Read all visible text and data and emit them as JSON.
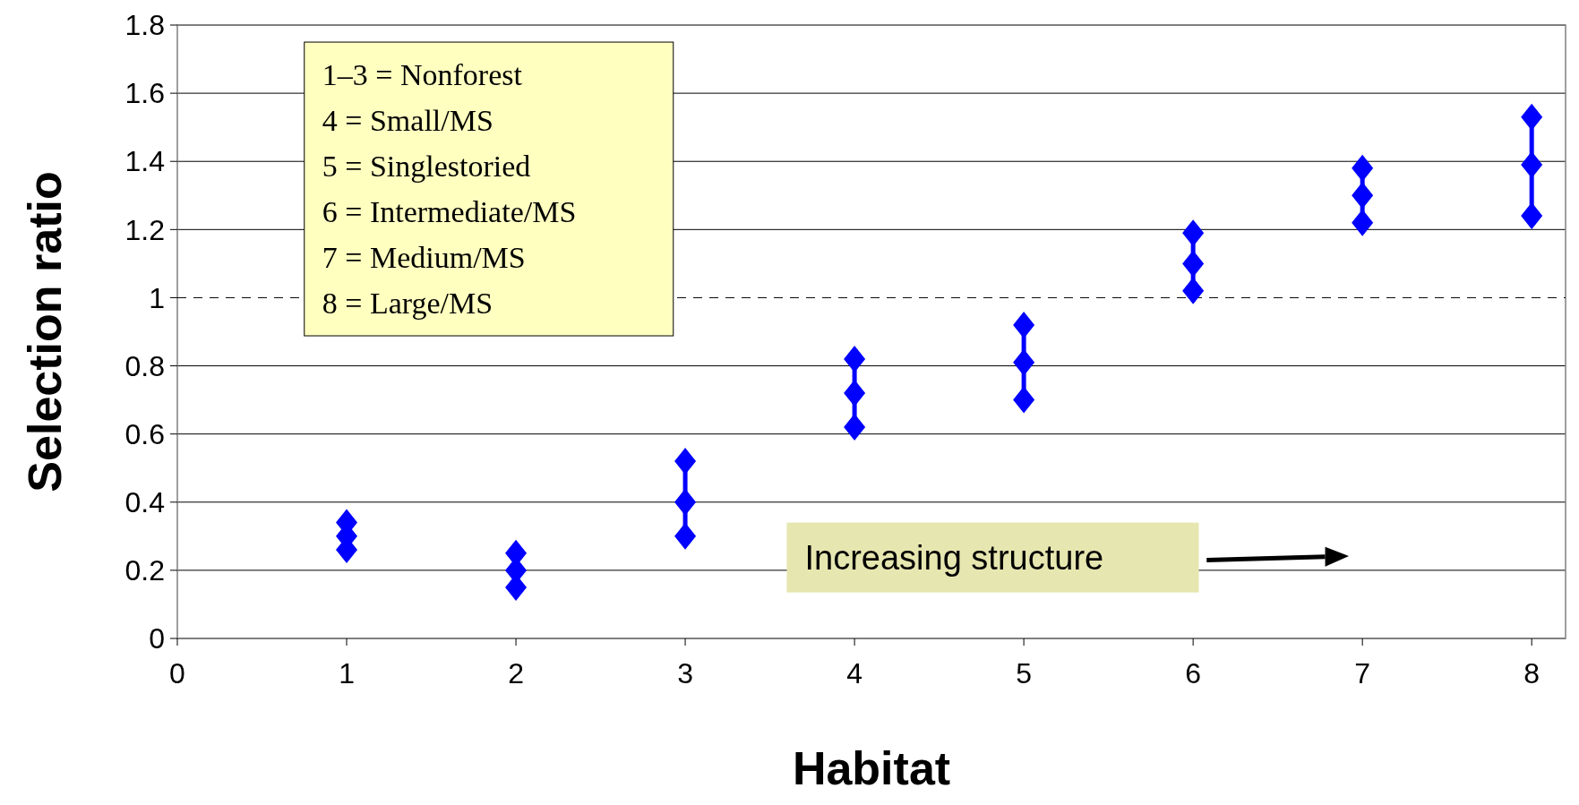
{
  "chart_data": {
    "type": "scatter",
    "xlabel": "Habitat",
    "ylabel": "Selection ratio",
    "x": [
      1,
      2,
      3,
      4,
      5,
      6,
      7,
      8
    ],
    "series": [
      {
        "type": "line",
        "marker": "none",
        "color": "#0000ff",
        "x": [
          3,
          3
        ],
        "values": [
          0.3,
          0.52
        ]
      },
      {
        "type": "line",
        "marker": "none",
        "color": "#0000ff",
        "x": [
          4,
          4
        ],
        "values": [
          0.62,
          0.82
        ]
      },
      {
        "type": "line",
        "marker": "none",
        "color": "#0000ff",
        "x": [
          5,
          5
        ],
        "values": [
          0.7,
          0.92
        ]
      },
      {
        "type": "line",
        "marker": "none",
        "color": "#0000ff",
        "x": [
          6,
          6
        ],
        "values": [
          1.02,
          1.19
        ]
      },
      {
        "type": "line",
        "marker": "none",
        "color": "#0000ff",
        "x": [
          7,
          7
        ],
        "values": [
          1.25,
          1.38
        ]
      },
      {
        "type": "line",
        "marker": "none",
        "color": "#0000ff",
        "x": [
          8,
          8
        ],
        "values": [
          1.24,
          1.53
        ]
      },
      {
        "color": "#0000ff",
        "values": [
          0.34,
          0.25,
          0.52,
          0.82,
          0.92,
          1.19,
          1.38,
          1.53
        ]
      },
      {
        "color": "#0000ff",
        "values": [
          0.3,
          0.2,
          0.4,
          0.72,
          0.81,
          1.1,
          1.3,
          1.39
        ]
      },
      {
        "color": "#0000ff",
        "values": [
          0.26,
          0.15,
          0.3,
          0.62,
          0.7,
          1.02,
          1.22,
          1.24
        ]
      }
    ],
    "xlim": [
      0,
      8.2
    ],
    "xticks": [
      0,
      1,
      2,
      3,
      4,
      5,
      6,
      7,
      8
    ],
    "ylim": [
      0,
      1.8
    ],
    "yticks": [
      0,
      0.2,
      0.4,
      0.6,
      0.8,
      1,
      1.2,
      1.4,
      1.6,
      1.8
    ],
    "grid": "y",
    "marker": "diamond",
    "ref_lines": [
      {
        "axis": "y",
        "value": 1,
        "color": "#000000",
        "line_style": "dashed"
      }
    ],
    "annotations": [
      "1–3 = Nonforest",
      "4 = Small/MS",
      "5 = Singlestoried",
      "6 = Intermediate/MS",
      "7 = Medium/MS",
      "8 = Large/MS",
      "Increasing structure"
    ]
  }
}
